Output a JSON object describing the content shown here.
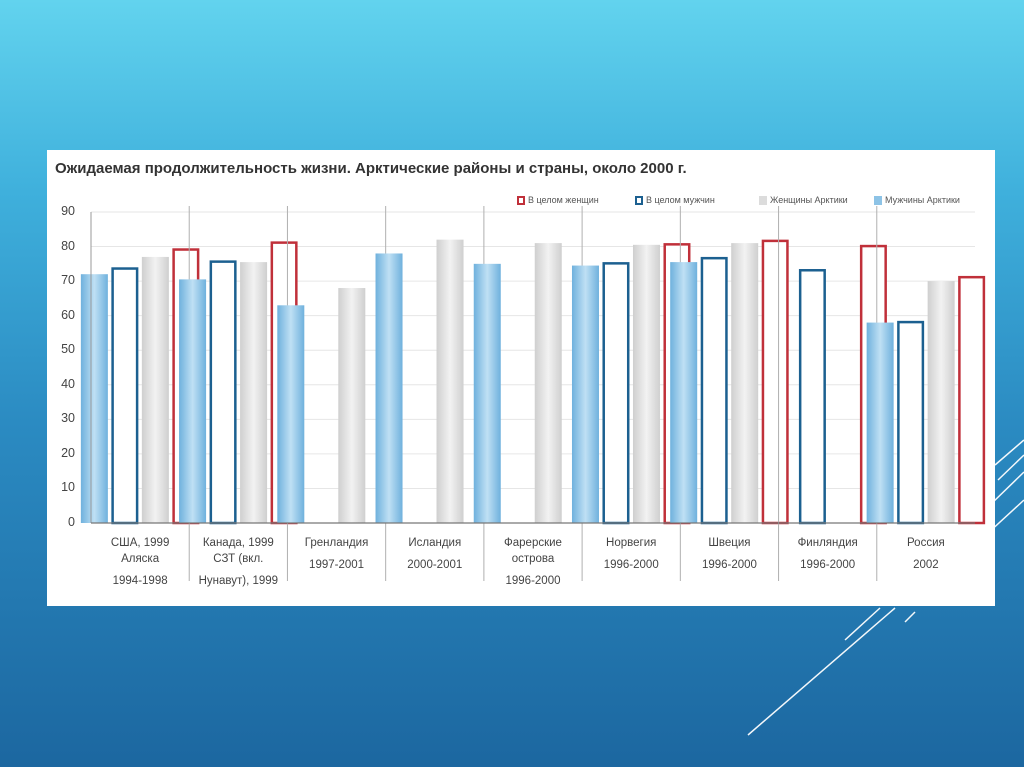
{
  "slide": {
    "background_top": "#62d3ee",
    "background_bottom": "#1c67a0"
  },
  "chart_data": {
    "type": "bar",
    "title": "Ожидаемая продолжительность жизни. Арктические районы и страны, около 2000 г.",
    "ylim": [
      0,
      90
    ],
    "yticks": [
      "90",
      "80",
      "70",
      "60",
      "50",
      "40",
      "30",
      "20",
      "10",
      "0"
    ],
    "grid": true,
    "legend_position": "top-right",
    "legend": [
      {
        "key": "total_women",
        "label": "В целом женщин",
        "style": "outline",
        "color": "#c0303a"
      },
      {
        "key": "total_men",
        "label": "В целом мужчин",
        "style": "outline",
        "color": "#1c6090"
      },
      {
        "key": "arctic_women",
        "label": "Женщины Арктики",
        "style": "fill",
        "color": "#dcdcdc"
      },
      {
        "key": "arctic_men",
        "label": "Мужчины Арктики",
        "style": "fill",
        "color": "#8dc3e6"
      }
    ],
    "categories": [
      {
        "lines": [
          "США, 1999",
          "Аляска",
          "1994-1998"
        ],
        "arctic_men": 72,
        "total_men": 74,
        "arctic_women": 77,
        "total_women": 79.5
      },
      {
        "lines": [
          "Канада, 1999",
          "СЗТ (вкл.",
          "Нунавут), 1999"
        ],
        "arctic_men": 70.5,
        "total_men": 76,
        "arctic_women": 75.5,
        "total_women": 81.5
      },
      {
        "lines": [
          "Гренландия",
          "1997-2001"
        ],
        "arctic_men": 63,
        "arctic_women": 68
      },
      {
        "lines": [
          "Исландия",
          "2000-2001"
        ],
        "arctic_men": 78,
        "arctic_women": 82
      },
      {
        "lines": [
          "Фарерские",
          "острова",
          "1996-2000"
        ],
        "arctic_men": 75,
        "arctic_women": 81
      },
      {
        "lines": [
          "Норвегия",
          "1996-2000"
        ],
        "arctic_men": 74.5,
        "total_men": 75.5,
        "arctic_women": 80.5,
        "total_women": 81
      },
      {
        "lines": [
          "Швеция",
          "1996-2000"
        ],
        "arctic_men": 75.5,
        "total_men": 77,
        "arctic_women": 81,
        "total_women": 82
      },
      {
        "lines": [
          "Финляндия",
          "1996-2000"
        ],
        "total_men": 73.5,
        "total_women": 80.5
      },
      {
        "lines": [
          "Россия",
          "2002"
        ],
        "arctic_men": 58,
        "total_men": 58.5,
        "arctic_women": 70,
        "total_women": 71.5
      }
    ]
  }
}
